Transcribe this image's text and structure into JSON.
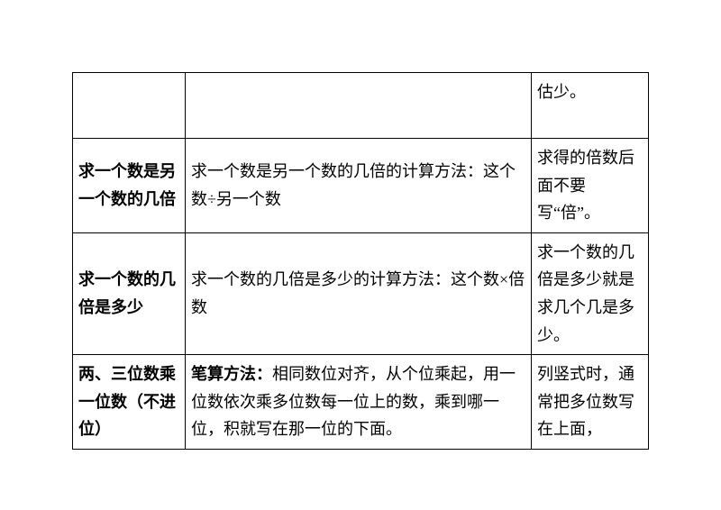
{
  "rows": [
    {
      "c1": "",
      "c2": "",
      "c3": "估少。"
    },
    {
      "c1": "求一个数是另一个数的几倍",
      "c2": "求一个数是另一个数的几倍的计算方法：这个数÷另一个数",
      "c3": "求得的倍数后面不要写“倍”。"
    },
    {
      "c1": "求一个数的几倍是多少",
      "c2": "求一个数的几倍是多少的计算方法：这个数×倍数",
      "c3": "求一个数的几倍是多少就是求几个几是多少。"
    },
    {
      "c1": "两、三位数乘一位数（不进位）",
      "c2_prefix": "笔算方法：",
      "c2_rest": "相同数位对齐，从个位乘起，用一位数依次乘多位数每一位上的数，乘到哪一位，积就写在那一位的下面。",
      "c3": "列竖式时，通常把多位数写在上面，"
    }
  ]
}
